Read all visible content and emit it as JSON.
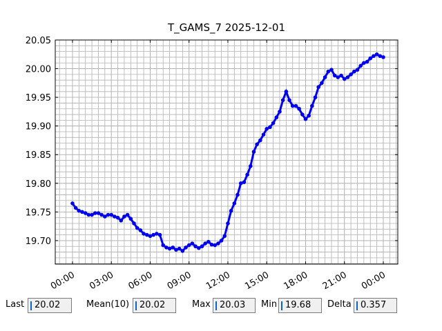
{
  "chart_data": {
    "type": "line",
    "marker": true,
    "title": "T_GAMS_7 2025-12-01",
    "color": "#0000ee",
    "grid": true,
    "xlim": [
      -1.33,
      25.12
    ],
    "ylim": [
      19.659,
      20.05
    ],
    "xticks": [
      {
        "value": 0,
        "label": "00:00"
      },
      {
        "value": 3,
        "label": "03:00"
      },
      {
        "value": 6,
        "label": "06:00"
      },
      {
        "value": 9,
        "label": "09:00"
      },
      {
        "value": 12,
        "label": "12:00"
      },
      {
        "value": 15,
        "label": "15:00"
      },
      {
        "value": 18,
        "label": "18:00"
      },
      {
        "value": 21,
        "label": "21:00"
      },
      {
        "value": 24,
        "label": "00:00"
      }
    ],
    "yticks": [
      {
        "value": 19.7,
        "label": "19.70"
      },
      19.75,
      {
        "value": 19.8,
        "label": "19.80"
      },
      19.85,
      {
        "value": 19.9,
        "label": "19.90"
      },
      19.95,
      {
        "value": 20,
        "label": "20.00"
      },
      20.05
    ],
    "x": [
      0,
      0.25,
      0.5,
      0.75,
      1,
      1.25,
      1.5,
      1.75,
      2,
      2.25,
      2.5,
      2.75,
      3,
      3.25,
      3.5,
      3.75,
      4,
      4.25,
      4.5,
      4.75,
      5,
      5.25,
      5.5,
      5.75,
      6,
      6.25,
      6.5,
      6.75,
      7,
      7.25,
      7.5,
      7.75,
      8,
      8.25,
      8.5,
      8.75,
      9,
      9.25,
      9.5,
      9.75,
      10,
      10.25,
      10.5,
      10.75,
      11,
      11.25,
      11.5,
      11.75,
      12,
      12.25,
      12.5,
      12.75,
      13,
      13.25,
      13.5,
      13.75,
      14,
      14.25,
      14.5,
      14.75,
      15,
      15.25,
      15.5,
      15.75,
      16,
      16.25,
      16.5,
      16.75,
      17,
      17.25,
      17.5,
      17.75,
      18,
      18.25,
      18.5,
      18.75,
      19,
      19.25,
      19.5,
      19.75,
      20,
      20.25,
      20.5,
      20.75,
      21,
      21.25,
      21.5,
      21.75,
      22,
      22.25,
      22.5,
      22.75,
      23,
      23.25,
      23.5,
      23.75,
      24
    ],
    "values": [
      19.765,
      19.757,
      19.752,
      19.75,
      19.748,
      19.745,
      19.745,
      19.748,
      19.748,
      19.745,
      19.742,
      19.745,
      19.745,
      19.742,
      19.74,
      19.735,
      19.742,
      19.745,
      19.738,
      19.73,
      19.722,
      19.718,
      19.712,
      19.71,
      19.708,
      19.71,
      19.712,
      19.71,
      19.692,
      19.688,
      19.686,
      19.688,
      19.684,
      19.686,
      19.682,
      19.688,
      19.692,
      19.695,
      19.69,
      19.687,
      19.69,
      19.695,
      19.698,
      19.693,
      19.692,
      19.695,
      19.7,
      19.708,
      19.73,
      19.752,
      19.765,
      19.78,
      19.8,
      19.802,
      19.815,
      19.83,
      19.855,
      19.868,
      19.875,
      19.885,
      19.895,
      19.898,
      19.905,
      19.915,
      19.925,
      19.945,
      19.96,
      19.945,
      19.935,
      19.935,
      19.93,
      19.92,
      19.912,
      19.918,
      19.935,
      19.95,
      19.968,
      19.975,
      19.985,
      19.995,
      19.998,
      19.988,
      19.985,
      19.988,
      19.982,
      19.985,
      19.99,
      19.995,
      19.998,
      20.005,
      20.01,
      20.012,
      20.018,
      20.022,
      20.025,
      20.022,
      20.02
    ]
  },
  "stats": [
    {
      "label": "Last",
      "value": 20.02
    },
    {
      "label": "Mean(10)",
      "value": 20.02
    },
    {
      "label": "Max",
      "value": 20.03
    },
    {
      "label": "Min",
      "value": 19.68
    },
    {
      "label": "Delta",
      "value": 0.357
    }
  ]
}
